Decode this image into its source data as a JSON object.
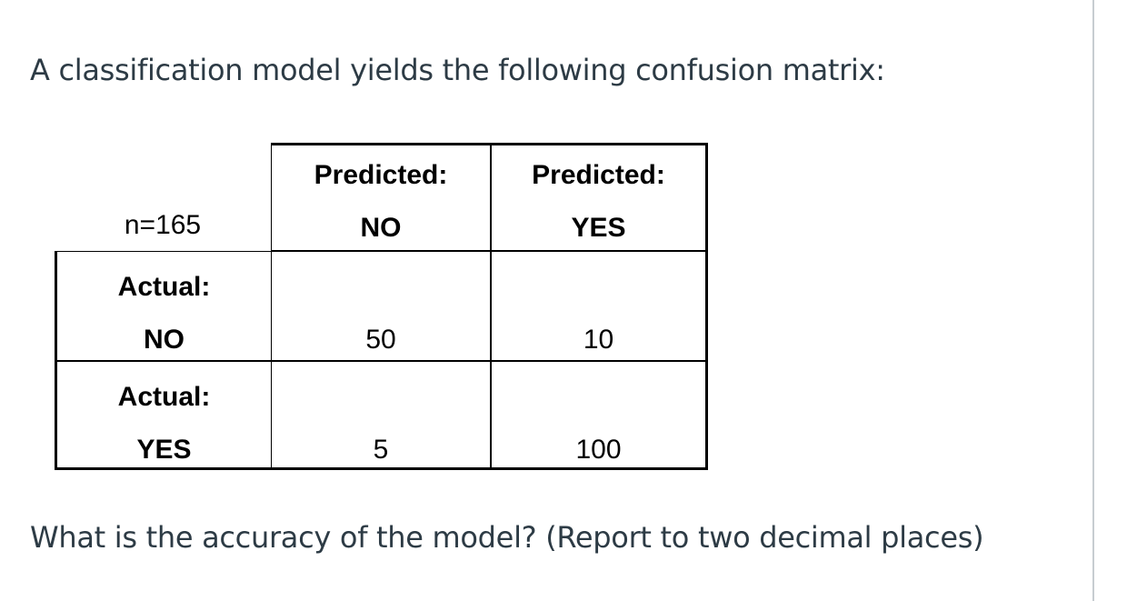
{
  "intro": "A classification model yields the following confusion matrix:",
  "table": {
    "corner": "n=165",
    "columns": [
      [
        "Predicted:",
        "NO"
      ],
      [
        "Predicted:",
        "YES"
      ]
    ],
    "rows": [
      {
        "label": [
          "Actual:",
          "NO"
        ],
        "cells": [
          50,
          10
        ]
      },
      {
        "label": [
          "Actual:",
          "YES"
        ],
        "cells": [
          5,
          100
        ]
      }
    ]
  },
  "question": "What is the accuracy of the model? (Report to two decimal places)"
}
